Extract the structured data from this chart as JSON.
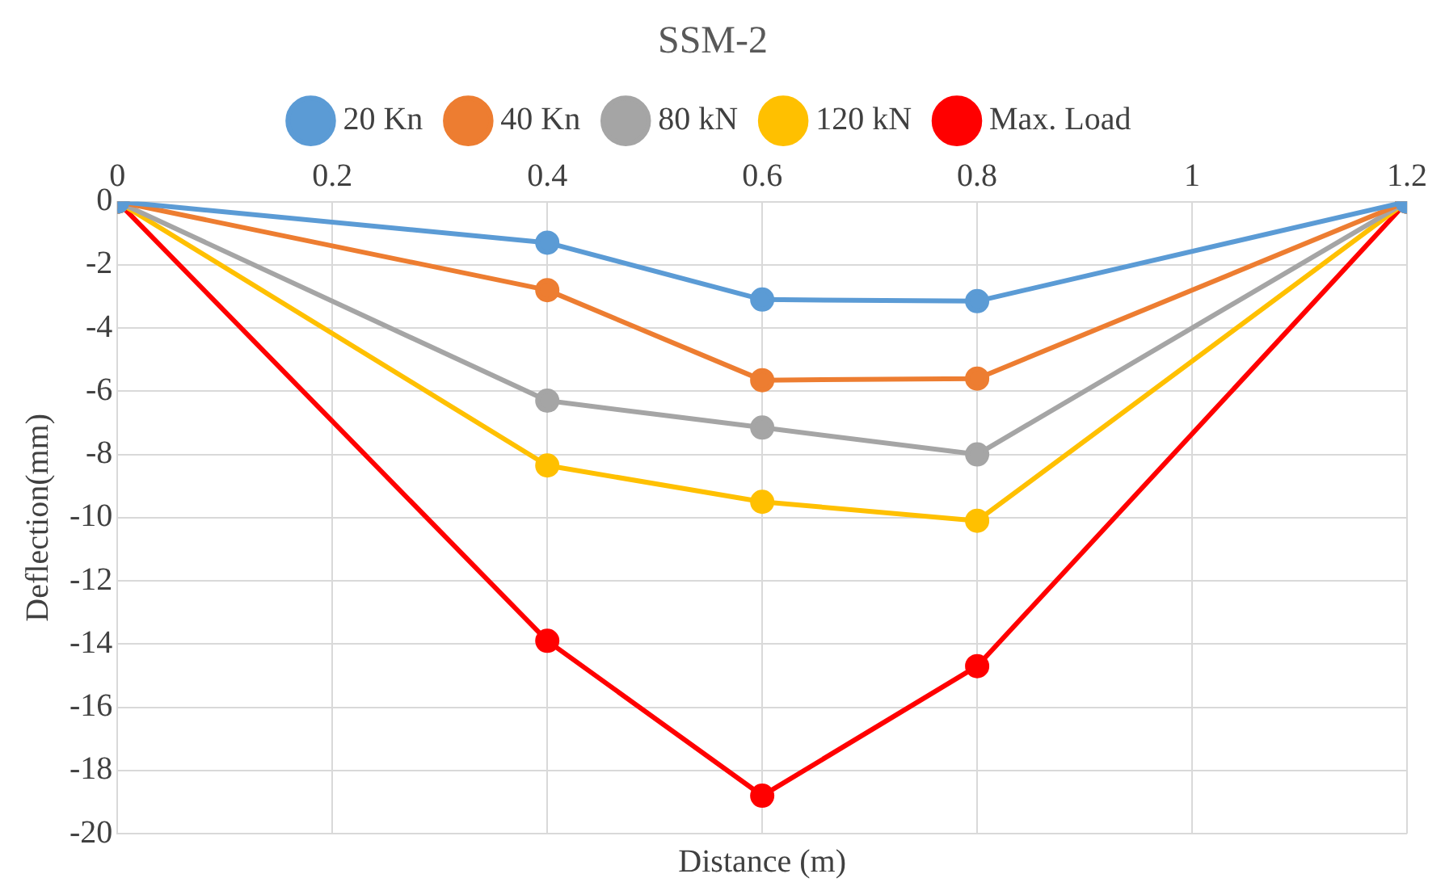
{
  "chart_data": {
    "type": "line",
    "title": "SSM-2",
    "xlabel": "Distance (m)",
    "ylabel": "Deflection(mm)",
    "x": [
      0,
      0.4,
      0.6,
      0.8,
      1.2
    ],
    "series": [
      {
        "name": "20 Kn",
        "color": "#5b9bd5",
        "values": [
          0,
          -1.3,
          -3.1,
          -3.15,
          0
        ]
      },
      {
        "name": "40 Kn",
        "color": "#ed7d31",
        "values": [
          0,
          -2.8,
          -5.65,
          -5.6,
          0
        ]
      },
      {
        "name": "80 kN",
        "color": "#a5a5a5",
        "values": [
          0,
          -6.3,
          -7.15,
          -8.0,
          0
        ]
      },
      {
        "name": "120 kN",
        "color": "#ffc000",
        "values": [
          0,
          -8.35,
          -9.5,
          -10.1,
          0
        ]
      },
      {
        "name": "Max. Load",
        "color": "#ff0000",
        "values": [
          0,
          -13.9,
          -18.8,
          -14.7,
          0
        ]
      }
    ],
    "xlim": [
      0,
      1.2
    ],
    "xticks": [
      0,
      0.2,
      0.4,
      0.6,
      0.8,
      1,
      1.2
    ],
    "ylim": [
      -20,
      0
    ],
    "yticks": [
      -20,
      -18,
      -16,
      -14,
      -12,
      -10,
      -8,
      -6,
      -4,
      -2,
      0
    ],
    "grid": true,
    "legend": "top",
    "marker": "circle",
    "line_style": "solid"
  }
}
